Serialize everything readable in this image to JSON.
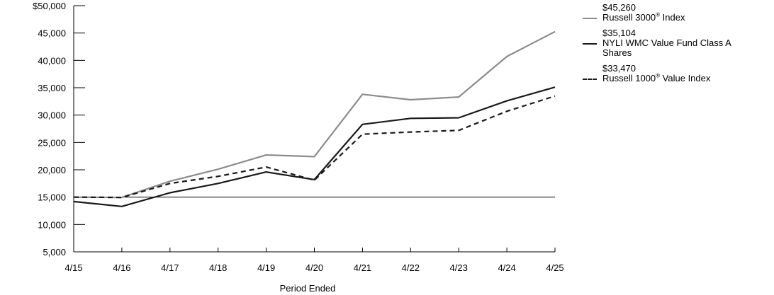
{
  "chart_data": {
    "type": "line",
    "xlabel": "Period Ended",
    "ylabel": "",
    "categories": [
      "4/15",
      "4/16",
      "4/17",
      "4/18",
      "4/19",
      "4/20",
      "4/21",
      "4/22",
      "4/23",
      "4/24",
      "4/25"
    ],
    "ylim": [
      5000,
      50000
    ],
    "yticks": [
      {
        "value": 50000,
        "label": "$50,000"
      },
      {
        "value": 45000,
        "label": "45,000"
      },
      {
        "value": 40000,
        "label": "40,000"
      },
      {
        "value": 35000,
        "label": "35,000"
      },
      {
        "value": 30000,
        "label": "30,000"
      },
      {
        "value": 25000,
        "label": "25,000"
      },
      {
        "value": 20000,
        "label": "20,000"
      },
      {
        "value": 15000,
        "label": "15,000"
      },
      {
        "value": 10000,
        "label": "10,000"
      },
      {
        "value": 5000,
        "label": "5,000"
      }
    ],
    "reference_line": 15000,
    "series": [
      {
        "name": "Russell 3000® Index",
        "name_main": "Russell 3000",
        "name_sup": "®",
        "name_tail": " Index",
        "end_value": "$45,260",
        "color": "#8c8c8c",
        "dash": "solid",
        "values": [
          15000,
          14950,
          17900,
          20100,
          22700,
          22400,
          33800,
          32800,
          33300,
          40700,
          45260
        ]
      },
      {
        "name": "NYLI WMC Value Fund Class A Shares",
        "name_main": "NYLI WMC Value Fund Class A Shares",
        "name_sup": "",
        "name_tail": "",
        "end_value": "$35,104",
        "color": "#1a1a1a",
        "dash": "solid",
        "values": [
          14200,
          13300,
          15800,
          17500,
          19600,
          18200,
          28300,
          29400,
          29500,
          32600,
          35104
        ]
      },
      {
        "name": "Russell 1000® Value Index",
        "name_main": "Russell 1000",
        "name_sup": "®",
        "name_tail": " Value Index",
        "end_value": "$33,470",
        "color": "#1a1a1a",
        "dash": "dashed",
        "values": [
          15000,
          14950,
          17500,
          18800,
          20500,
          18100,
          26500,
          26900,
          27200,
          30700,
          33470
        ]
      }
    ]
  }
}
